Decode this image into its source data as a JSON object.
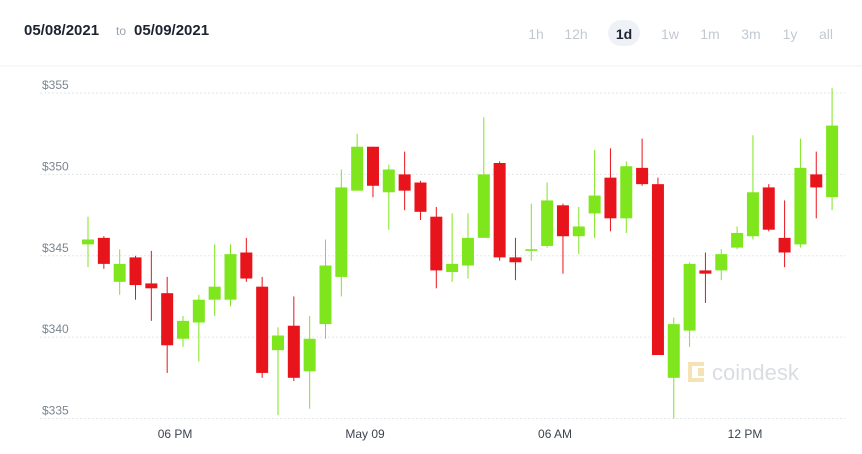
{
  "chart_data": {
    "type": "candlestick",
    "date_from": "05/08/2021",
    "date_separator": "to",
    "date_to": "05/09/2021",
    "range_options": [
      "1h",
      "12h",
      "1d",
      "1w",
      "1m",
      "3m",
      "1y",
      "all"
    ],
    "selected_range": "1d",
    "watermark": "coindesk",
    "up_color": "#7fe61e",
    "down_color": "#e8141b",
    "grid": true,
    "ylim": [
      334.6,
      355.8
    ],
    "yticks": [
      {
        "value": 335,
        "label": "$335"
      },
      {
        "value": 340,
        "label": "$340"
      },
      {
        "value": 345,
        "label": "$345"
      },
      {
        "value": 350,
        "label": "$350"
      },
      {
        "value": 355,
        "label": "$355"
      }
    ],
    "categories": [
      null,
      null,
      null,
      null,
      null,
      null,
      "06 PM",
      null,
      null,
      null,
      null,
      null,
      null,
      null,
      null,
      null,
      null,
      null,
      "May 09",
      null,
      null,
      null,
      null,
      null,
      null,
      null,
      null,
      null,
      null,
      null,
      "06 AM",
      null,
      null,
      null,
      null,
      null,
      null,
      null,
      null,
      null,
      null,
      null,
      "12 PM",
      null,
      null,
      null,
      null,
      null
    ],
    "open": [
      345.7,
      346.1,
      343.4,
      344.9,
      343.3,
      342.7,
      339.9,
      340.9,
      342.3,
      342.3,
      345.2,
      343.1,
      339.2,
      340.7,
      337.9,
      340.8,
      343.7,
      349.0,
      351.7,
      348.9,
      350.0,
      349.5,
      347.4,
      344.0,
      344.4,
      346.1,
      350.7,
      344.9,
      345.3,
      345.6,
      348.1,
      346.2,
      347.6,
      349.8,
      347.3,
      350.4,
      349.4,
      337.5,
      340.4,
      344.1,
      344.1,
      345.5,
      346.2,
      349.2,
      346.1,
      345.7,
      350.0,
      348.6
    ],
    "high": [
      347.4,
      346.2,
      345.4,
      345.0,
      345.3,
      343.7,
      341.3,
      342.6,
      345.7,
      345.7,
      346.1,
      343.7,
      340.6,
      342.5,
      341.3,
      346.0,
      350.3,
      352.5,
      351.7,
      350.6,
      351.4,
      349.6,
      348.0,
      347.6,
      347.6,
      353.5,
      350.8,
      346.1,
      348.2,
      349.5,
      348.2,
      348.0,
      351.5,
      351.6,
      350.8,
      352.2,
      349.8,
      341.2,
      344.6,
      345.2,
      345.4,
      346.8,
      352.4,
      349.4,
      348.4,
      352.2,
      351.4,
      355.3
    ],
    "low": [
      344.3,
      344.2,
      342.6,
      342.3,
      341.0,
      337.8,
      339.4,
      338.5,
      341.3,
      341.9,
      343.4,
      337.5,
      335.2,
      337.3,
      335.6,
      339.9,
      342.5,
      349.0,
      348.6,
      346.6,
      347.8,
      347.2,
      343.0,
      343.4,
      343.6,
      346.1,
      344.7,
      343.5,
      344.7,
      345.5,
      343.9,
      345.1,
      346.1,
      346.5,
      346.4,
      349.3,
      338.9,
      335.0,
      339.4,
      342.1,
      343.5,
      345.4,
      346.0,
      346.5,
      344.3,
      345.5,
      347.3,
      347.8
    ],
    "close": [
      346.0,
      344.5,
      344.5,
      343.2,
      343.0,
      339.5,
      341.0,
      342.3,
      343.1,
      345.1,
      343.6,
      337.8,
      340.1,
      337.5,
      339.9,
      344.4,
      349.2,
      351.7,
      349.3,
      350.3,
      349.0,
      347.7,
      344.1,
      344.5,
      346.1,
      350.0,
      344.9,
      344.6,
      345.4,
      348.4,
      346.2,
      346.8,
      348.7,
      347.3,
      350.5,
      349.4,
      338.9,
      340.8,
      344.5,
      343.9,
      345.1,
      346.4,
      348.9,
      346.6,
      345.2,
      350.4,
      349.2,
      353.0
    ]
  }
}
